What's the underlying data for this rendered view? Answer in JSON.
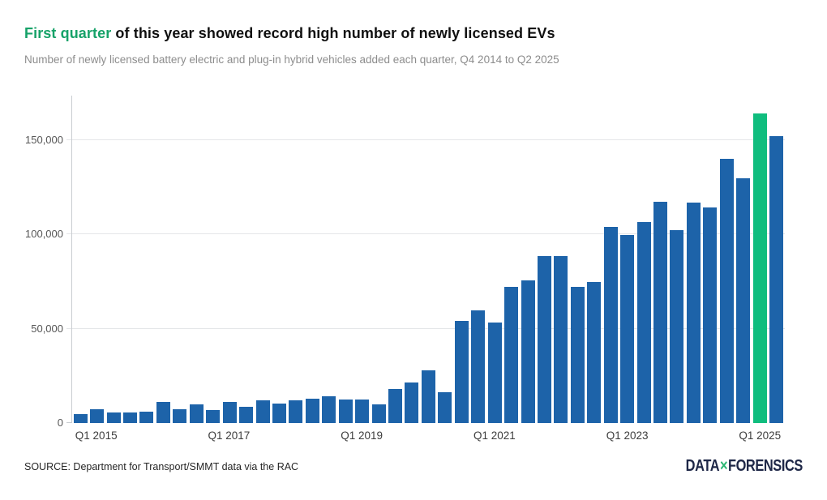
{
  "header": {
    "title_highlight": "First quarter",
    "title_rest": " of this year showed record high number of newly licensed EVs",
    "subtitle": "Number of newly licensed battery electric and plug-in hybrid vehicles added each quarter, Q4 2014 to Q2 2025"
  },
  "footer": {
    "source": "SOURCE: Department for Transport/SMMT data via the RAC",
    "logo": {
      "word1": "DATA",
      "separator": "×",
      "word2": "FORENSICS"
    }
  },
  "colors": {
    "bar_blue": "#1d63a9",
    "bar_highlight_green": "#10bd7e",
    "title_highlight_green": "#17a269",
    "logo_navy": "#1e2747",
    "logo_green": "#2bb673",
    "gridline_gray": "#e4e6e8",
    "axis_gray": "#c9cdd1"
  },
  "chart_data": {
    "type": "bar",
    "title": "First quarter of this year showed record high number of newly licensed EVs",
    "subtitle": "Number of newly licensed battery electric and plug-in hybrid vehicles added each quarter, Q4 2014 to Q2 2025",
    "source": "SOURCE: Department for Transport/SMMT data via the RAC",
    "xlabel": "",
    "ylabel": "",
    "ylim": [
      0,
      173700
    ],
    "grid": "horizontal",
    "legend": "none",
    "highlight_index": 41,
    "highlight_category": "Q1 2025",
    "categories": [
      "Q4 2014",
      "Q1 2015",
      "Q2 2015",
      "Q3 2015",
      "Q4 2015",
      "Q1 2016",
      "Q2 2016",
      "Q3 2016",
      "Q4 2016",
      "Q1 2017",
      "Q2 2017",
      "Q3 2017",
      "Q4 2017",
      "Q1 2018",
      "Q2 2018",
      "Q3 2018",
      "Q4 2018",
      "Q1 2019",
      "Q2 2019",
      "Q3 2019",
      "Q4 2019",
      "Q1 2020",
      "Q2 2020",
      "Q3 2020",
      "Q4 2020",
      "Q1 2021",
      "Q2 2021",
      "Q3 2021",
      "Q4 2021",
      "Q1 2022",
      "Q2 2022",
      "Q3 2022",
      "Q4 2022",
      "Q1 2023",
      "Q2 2023",
      "Q3 2023",
      "Q4 2023",
      "Q1 2024",
      "Q2 2024",
      "Q3 2024",
      "Q4 2024",
      "Q1 2025",
      "Q2 2025"
    ],
    "values": [
      4700,
      7500,
      5700,
      5600,
      6200,
      11000,
      7300,
      9800,
      6900,
      11100,
      8800,
      12100,
      10300,
      12100,
      12700,
      14400,
      12600,
      12300,
      10100,
      17900,
      21400,
      27800,
      16500,
      54000,
      59900,
      53500,
      72100,
      75700,
      88700,
      88600,
      72400,
      74600,
      103900,
      99600,
      106500,
      117400,
      102500,
      117100,
      114200,
      140300,
      129900,
      164300,
      152200
    ],
    "y_ticks": [
      {
        "value": 0,
        "label": "0"
      },
      {
        "value": 50000,
        "label": "50,000"
      },
      {
        "value": 100000,
        "label": "100,000"
      },
      {
        "value": 150000,
        "label": "150,000"
      }
    ],
    "x_ticks": [
      {
        "index": 1,
        "label": "Q1 2015"
      },
      {
        "index": 9,
        "label": "Q1 2017"
      },
      {
        "index": 17,
        "label": "Q1 2019"
      },
      {
        "index": 25,
        "label": "Q1 2021"
      },
      {
        "index": 33,
        "label": "Q1 2023"
      },
      {
        "index": 41,
        "label": "Q1 2025"
      }
    ]
  }
}
